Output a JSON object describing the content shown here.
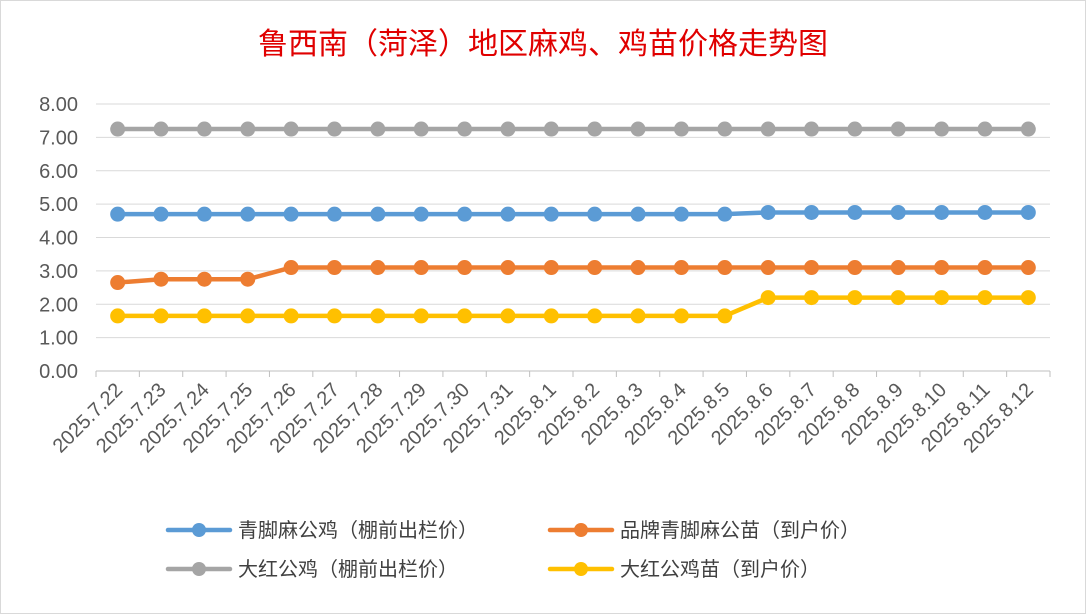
{
  "chart_data": {
    "type": "line",
    "title": "鲁西南（菏泽）地区麻鸡、鸡苗价格走势图",
    "title_color": "#e00000",
    "xlabel": "",
    "ylabel": "",
    "ylim": [
      0,
      8
    ],
    "y_ticks": [
      "0.00",
      "1.00",
      "2.00",
      "3.00",
      "4.00",
      "5.00",
      "6.00",
      "7.00",
      "8.00"
    ],
    "grid": true,
    "legend_position": "bottom",
    "categories": [
      "2025.7.22",
      "2025.7.23",
      "2025.7.24",
      "2025.7.25",
      "2025.7.26",
      "2025.7.27",
      "2025.7.28",
      "2025.7.29",
      "2025.7.30",
      "2025.7.31",
      "2025.8.1",
      "2025.8.2",
      "2025.8.3",
      "2025.8.4",
      "2025.8.5",
      "2025.8.6",
      "2025.8.7",
      "2025.8.8",
      "2025.8.9",
      "2025.8.10",
      "2025.8.11",
      "2025.8.12"
    ],
    "series": [
      {
        "name": "青脚麻公鸡（棚前出栏价）",
        "color": "#5b9bd5",
        "values": [
          4.7,
          4.7,
          4.7,
          4.7,
          4.7,
          4.7,
          4.7,
          4.7,
          4.7,
          4.7,
          4.7,
          4.7,
          4.7,
          4.7,
          4.7,
          4.75,
          4.75,
          4.75,
          4.75,
          4.75,
          4.75,
          4.75
        ]
      },
      {
        "name": "品牌青脚麻公苗（到户价）",
        "color": "#ed7d31",
        "values": [
          2.65,
          2.75,
          2.75,
          2.75,
          3.1,
          3.1,
          3.1,
          3.1,
          3.1,
          3.1,
          3.1,
          3.1,
          3.1,
          3.1,
          3.1,
          3.1,
          3.1,
          3.1,
          3.1,
          3.1,
          3.1,
          3.1
        ]
      },
      {
        "name": "大红公鸡（棚前出栏价）",
        "color": "#a5a5a5",
        "values": [
          7.25,
          7.25,
          7.25,
          7.25,
          7.25,
          7.25,
          7.25,
          7.25,
          7.25,
          7.25,
          7.25,
          7.25,
          7.25,
          7.25,
          7.25,
          7.25,
          7.25,
          7.25,
          7.25,
          7.25,
          7.25,
          7.25
        ]
      },
      {
        "name": "大红公鸡苗（到户价）",
        "color": "#ffc000",
        "values": [
          1.65,
          1.65,
          1.65,
          1.65,
          1.65,
          1.65,
          1.65,
          1.65,
          1.65,
          1.65,
          1.65,
          1.65,
          1.65,
          1.65,
          1.65,
          2.2,
          2.2,
          2.2,
          2.2,
          2.2,
          2.2,
          2.2
        ]
      }
    ],
    "draw_order": [
      2,
      0,
      1,
      3
    ],
    "legend_order": [
      0,
      1,
      2,
      3
    ]
  }
}
